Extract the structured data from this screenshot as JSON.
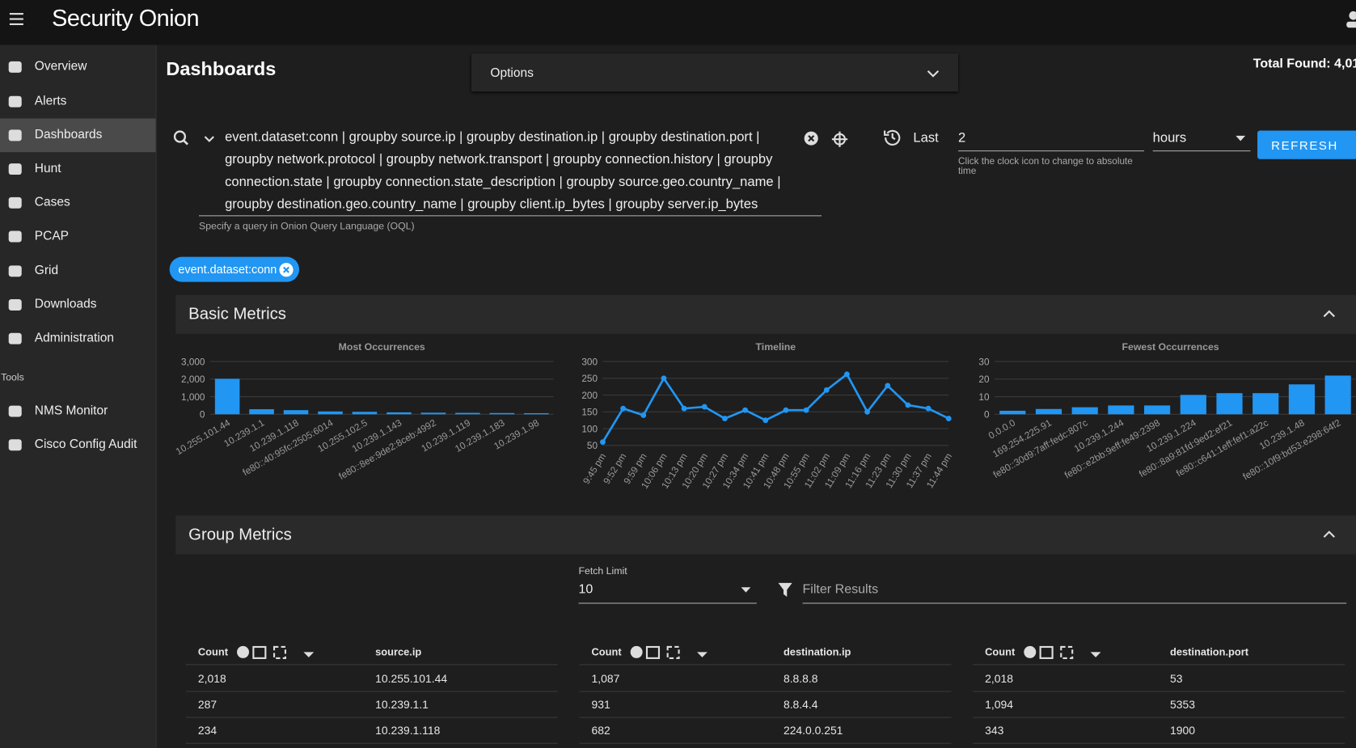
{
  "header": {
    "brand": "Security Onion"
  },
  "nav": {
    "items": [
      "Overview",
      "Alerts",
      "Dashboards",
      "Hunt",
      "Cases",
      "PCAP",
      "Grid",
      "Downloads",
      "Administration"
    ],
    "tools_label": "Tools",
    "tools": [
      "NMS Monitor",
      "Cisco Config Audit"
    ]
  },
  "page": {
    "title": "Dashboards",
    "options": "Options",
    "total_found": "Total Found: 4,01"
  },
  "query": {
    "text": "event.dataset:conn | groupby source.ip | groupby destination.ip | groupby destination.port | groupby network.protocol | groupby network.transport | groupby connection.history | groupby connection.state | groupby connection.state_description | groupby source.geo.country_name | groupby destination.geo.country_name | groupby client.ip_bytes | groupby server.ip_bytes",
    "hint": "Specify a query in Onion Query Language (OQL)",
    "range_label": "Last",
    "range_value": "2",
    "range_unit": "hours",
    "range_hint": "Click the clock icon to change to absolute time",
    "refresh": "REFRESH",
    "filter_chip": "event.dataset:conn"
  },
  "basic_metrics": {
    "title": "Basic Metrics",
    "charts": [
      {
        "type": "bar",
        "title": "Most Occurrences",
        "color": "#2196f3",
        "grid": true,
        "categories": [
          "10.255.101.44",
          "10.239.1.1",
          "10.239.1.118",
          "fe80::40:95fc:2505:6014",
          "10.255.102.5",
          "10.239.1.143",
          "fe80::8ee:9de2:8ceb:4992",
          "10.239.1.119",
          "10.239.1.183",
          "10.239.1.98"
        ],
        "values": [
          2018,
          287,
          234,
          160,
          140,
          110,
          90,
          80,
          70,
          60
        ],
        "ylim": [
          0,
          3000
        ],
        "yticks": [
          0,
          {
            "value": 1000,
            "label": "1,000"
          },
          {
            "value": 2000,
            "label": "2,000"
          },
          {
            "value": 3000,
            "label": "3,000"
          }
        ]
      },
      {
        "type": "line",
        "title": "Timeline",
        "color": "#2196f3",
        "grid": true,
        "categories": [
          "9:45 pm",
          "9:52 pm",
          "9:59 pm",
          "10:06 pm",
          "10:13 pm",
          "10:20 pm",
          "10:27 pm",
          "10:34 pm",
          "10:41 pm",
          "10:48 pm",
          "10:55 pm",
          "11:02 pm",
          "11:09 pm",
          "11:16 pm",
          "11:23 pm",
          "11:30 pm",
          "11:37 pm",
          "11:44 pm"
        ],
        "values": [
          60,
          160,
          140,
          250,
          160,
          165,
          130,
          155,
          125,
          155,
          155,
          215,
          262,
          150,
          228,
          170,
          160,
          130
        ],
        "ylim": [
          50,
          300
        ],
        "yticks": [
          50,
          100,
          150,
          200,
          250,
          300
        ]
      },
      {
        "type": "bar",
        "title": "Fewest Occurrences",
        "color": "#2196f3",
        "grid": true,
        "categories": [
          "0.0.0.0",
          "169.254.225.91",
          "fe80::30d9:7aff:fedc:807c",
          "10.239.1.244",
          "fe80::e2bb:9eff:fe49:2398",
          "10.239.1.224",
          "fe80::8a9:81fd:9ed2:ef21",
          "fe80::c641:1eff:fef1:a22c",
          "10.239.1.48",
          "fe80::10f9:bd53:e298:64f2"
        ],
        "values": [
          2,
          3,
          4,
          5,
          5,
          11,
          12,
          12,
          17,
          22
        ],
        "ylim": [
          0,
          30
        ],
        "yticks": [
          0,
          10,
          20,
          30
        ]
      }
    ]
  },
  "group_metrics": {
    "title": "Group Metrics",
    "fetch_limit_label": "Fetch Limit",
    "fetch_limit": "10",
    "filter_placeholder": "Filter Results",
    "tables": [
      {
        "headers": [
          "Count",
          "source.ip"
        ],
        "rows": [
          [
            "2,018",
            "10.255.101.44"
          ],
          [
            "287",
            "10.239.1.1"
          ],
          [
            "234",
            "10.239.1.118"
          ]
        ]
      },
      {
        "headers": [
          "Count",
          "destination.ip"
        ],
        "rows": [
          [
            "1,087",
            "8.8.8.8"
          ],
          [
            "931",
            "8.8.4.4"
          ],
          [
            "682",
            "224.0.0.251"
          ]
        ]
      },
      {
        "headers": [
          "Count",
          "destination.port"
        ],
        "rows": [
          [
            "2,018",
            "53"
          ],
          [
            "1,094",
            "5353"
          ],
          [
            "343",
            "1900"
          ]
        ]
      }
    ]
  }
}
